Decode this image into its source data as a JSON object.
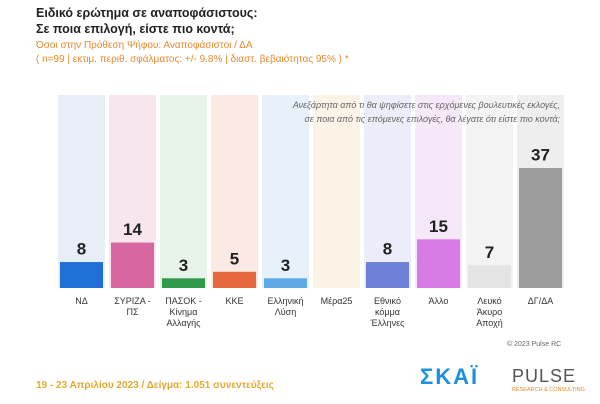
{
  "chart_data": {
    "type": "bar",
    "title": "Ειδικό ερώτημα σε αναποφάσιστους:",
    "title_line2": "Σε ποια επιλογή, είστε πιο κοντά;",
    "subtitle": "Όσοι στην Πρόθεση Ψήφου: Αναποφάσιστοι / ΔΑ",
    "sample_note": "( n=99 | εκτιμ. περιθ. σφάλματος: +/- 9.8% | διαστ. βεβαιότητας 95% ) *",
    "question": "Ανεξάρτητα από τι θα ψηφίσετε στις ερχόμενες βουλευτικές εκλογές,\nσε ποια από τις επόμενες επιλογές, θα λέγατε ότι είστε πιο κοντά;",
    "categories": [
      "ΝΔ",
      "ΣΥΡΙΖΑ -\nΠΣ",
      "ΠΑΣΟΚ -\nΚίνημα\nΑλλαγής",
      "ΚΚΕ",
      "Ελληνική\nΛύση",
      "Μέρα25",
      "Εθνικό\nκόμμα\nΈλληνες",
      "Άλλο",
      "Λευκό\nΆκυρο\nΑποχή",
      "ΔΓ/ΔΑ"
    ],
    "values": [
      8,
      14,
      3,
      5,
      3,
      null,
      8,
      15,
      7,
      37
    ],
    "colors": [
      "#1f6fd6",
      "#d9679f",
      "#2f9a4c",
      "#e6683e",
      "#5eaae6",
      "#e05a4e",
      "#6d80d8",
      "#d77ae6",
      "#e4e4e4",
      "#9c9c9c"
    ],
    "copyright": "© 2023 Pulse RC",
    "footer": "19 - 23 Απριλίου 2023  /  Δείγμα: 1.051 συνεντεύξεις",
    "logo_skai": "ΣΚΑΪ",
    "logo_pulse": "PULSE",
    "logo_pulse_sub": "RESEARCH & CONSULTING"
  }
}
